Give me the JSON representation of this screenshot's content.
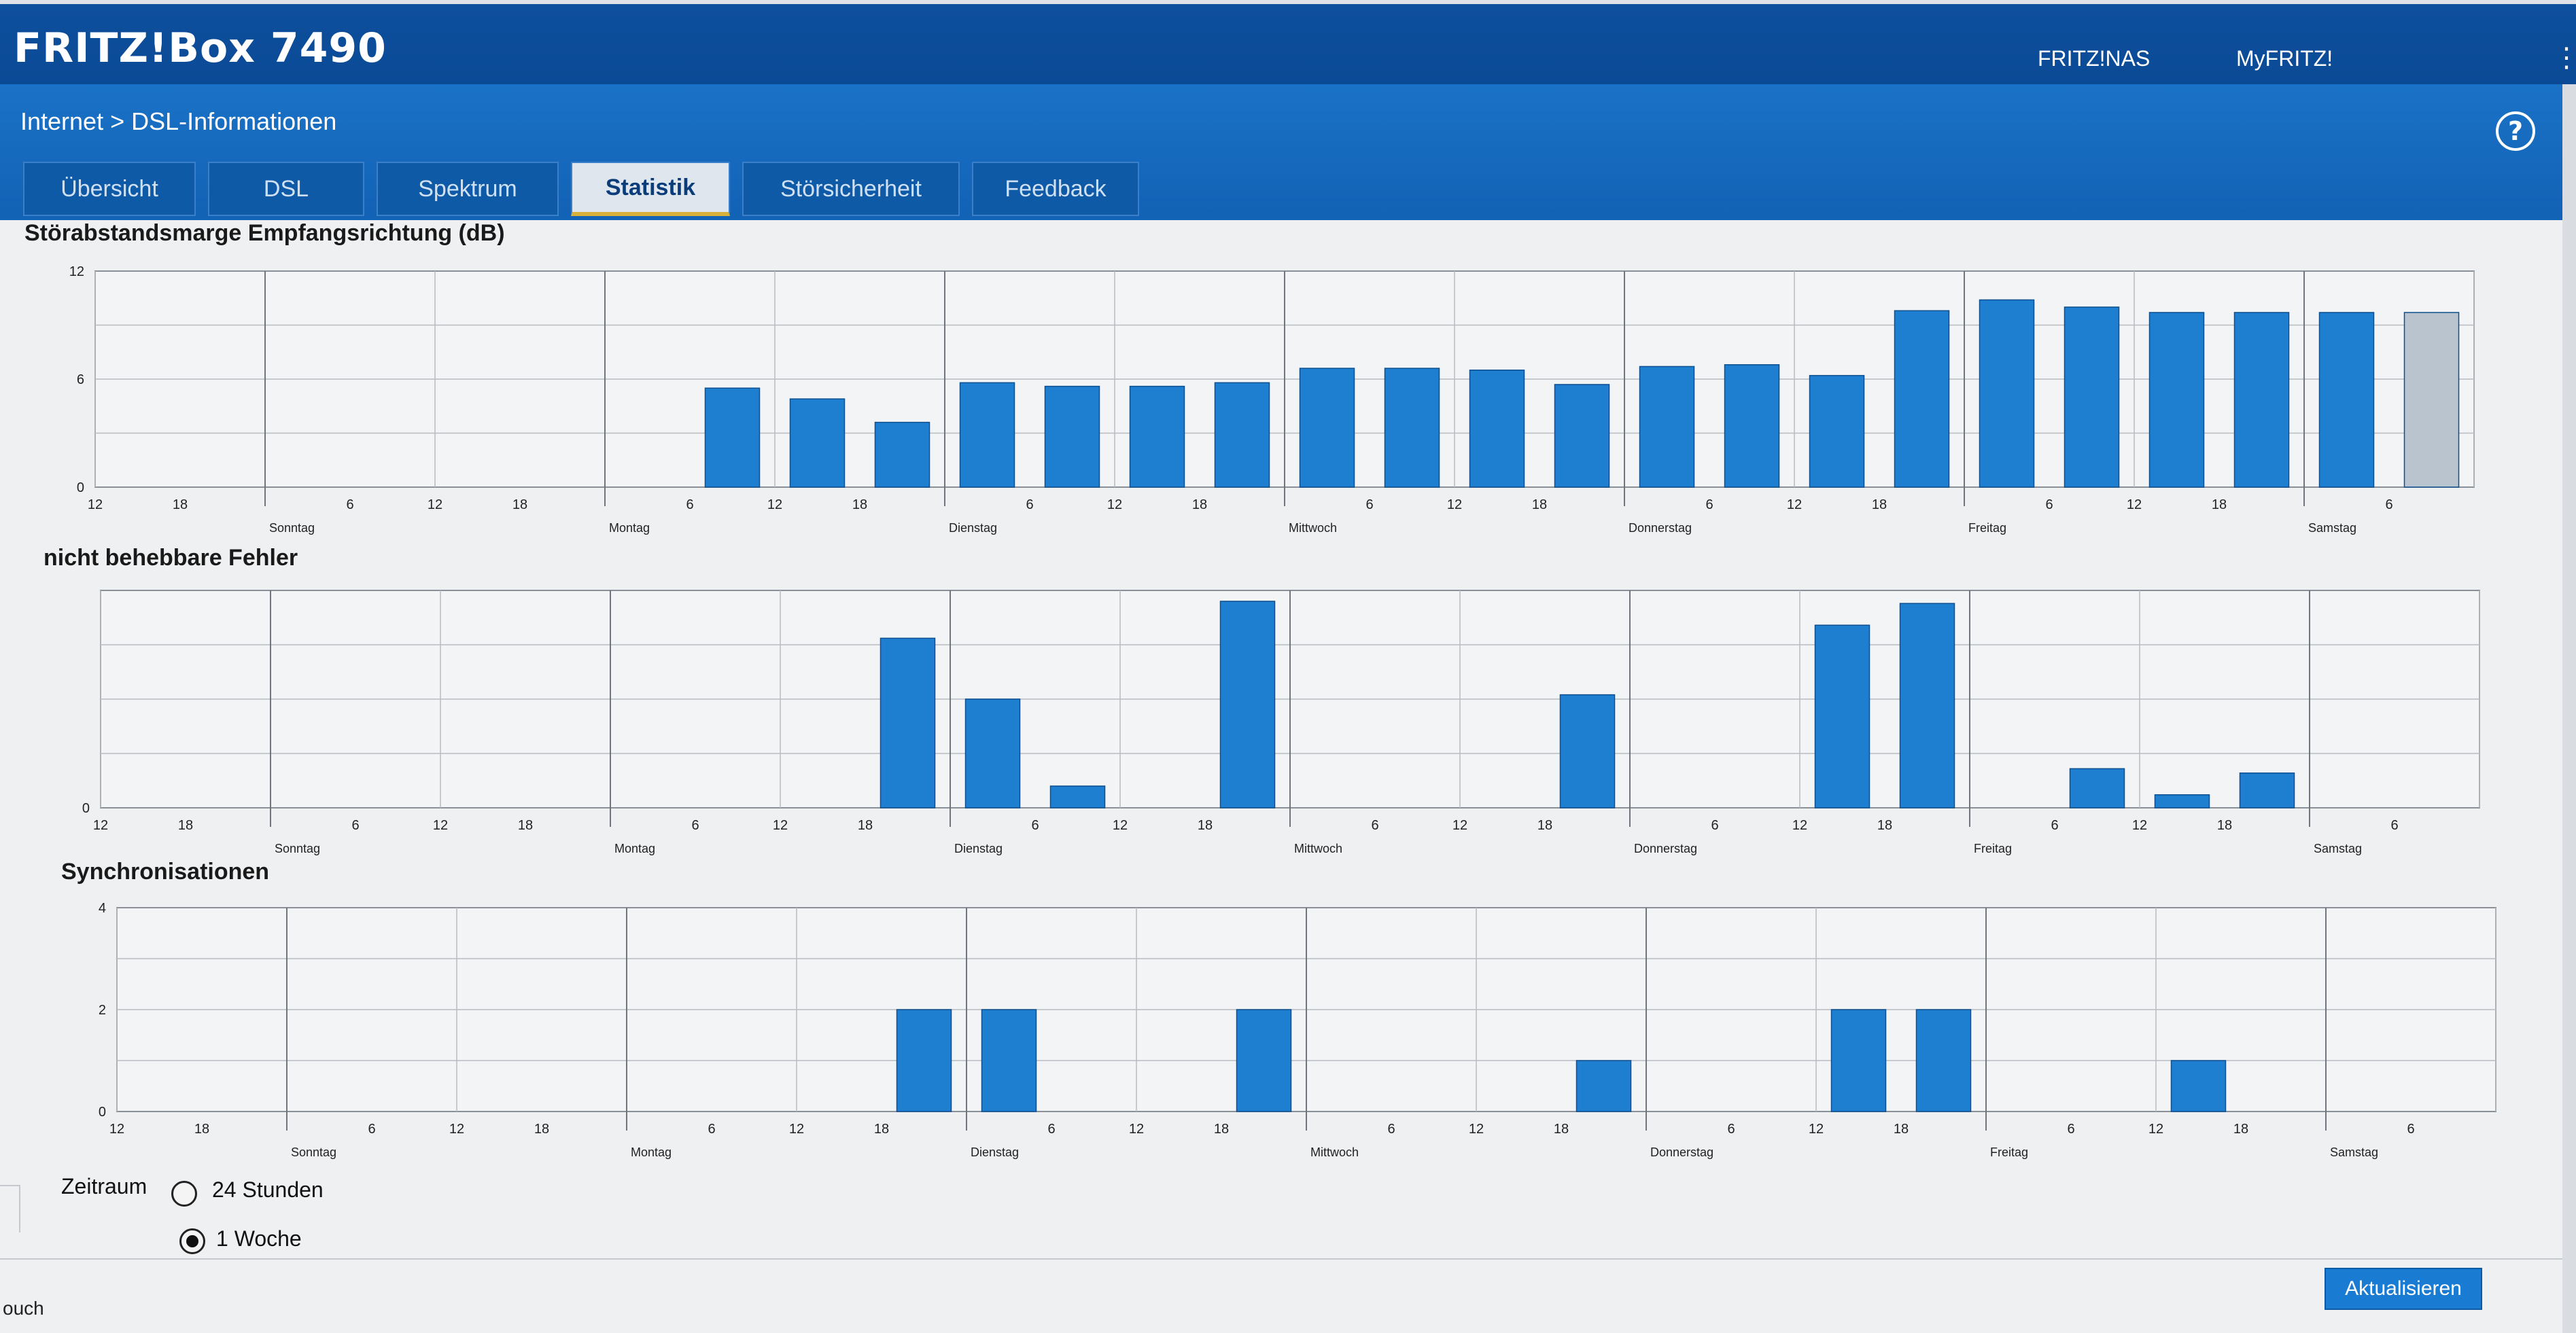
{
  "header": {
    "brand": "FRITZ!Box 7490",
    "links": [
      "FRITZ!NAS",
      "MyFRITZ!"
    ],
    "menu_icon": "kebab-menu-icon"
  },
  "breadcrumb": {
    "section": "Internet",
    "separator": ">",
    "page": "DSL-Informationen",
    "full": "Internet > DSL-Informationen"
  },
  "help_label": "?",
  "tabs": [
    {
      "label": "Übersicht",
      "active": false
    },
    {
      "label": "DSL",
      "active": false
    },
    {
      "label": "Spektrum",
      "active": false
    },
    {
      "label": "Statistik",
      "active": true
    },
    {
      "label": "Störsicherheit",
      "active": false
    },
    {
      "label": "Feedback",
      "active": false
    }
  ],
  "colors": {
    "header": "#0e4f9e",
    "subbar": "#1a72c6",
    "bar": "#1e7fd0",
    "bar_current": "#b9c4cf",
    "button": "#1a7bd3"
  },
  "x_axis": {
    "hour_ticks": [
      "12",
      "18",
      "6",
      "12",
      "18",
      "6",
      "12",
      "18",
      "6",
      "12",
      "18",
      "6",
      "12",
      "18",
      "6",
      "12",
      "18",
      "6",
      "12",
      "18",
      "6"
    ],
    "days": [
      "Sonntag",
      "Montag",
      "Dienstag",
      "Mittwoch",
      "Donnerstag",
      "Freitag",
      "Samstag"
    ]
  },
  "chart_data": [
    {
      "type": "bar",
      "title": "Störabstandsmarge Empfangsrichtung (dB)",
      "ylim": [
        0,
        12
      ],
      "yticks": [
        "0",
        "6",
        "12"
      ],
      "x": [
        "Mo 6-12",
        "Mo 12-18",
        "Mo 18-24",
        "Di 0-6",
        "Di 6-12",
        "Di 12-18",
        "Di 18-24",
        "Mi 0-6",
        "Mi 6-12",
        "Mi 12-18",
        "Mi 18-24",
        "Do 0-6",
        "Do 6-12",
        "Do 12-18",
        "Do 18-24",
        "Fr 0-6",
        "Fr 6-12",
        "Fr 12-18",
        "Fr 18-24",
        "Sa 0-6",
        "Sa 6-12"
      ],
      "values": [
        5.5,
        4.9,
        3.6,
        5.8,
        5.6,
        5.6,
        5.8,
        6.6,
        6.6,
        6.5,
        5.7,
        6.7,
        6.8,
        6.2,
        9.8,
        10.4,
        10.0,
        9.7,
        9.7,
        9.7,
        9.7
      ],
      "current_index": 20
    },
    {
      "type": "bar",
      "title": "nicht behebbare Fehler",
      "yticks": [
        "0"
      ],
      "ylim": [
        0,
        10
      ],
      "x": [
        "Mo 18-24",
        "Di 0-6",
        "Di 6-12",
        "Di 18-24",
        "Mi 18-24",
        "Do 12-18",
        "Do 18-24",
        "Fr 6-12",
        "Fr 12-18",
        "Fr 18-24"
      ],
      "values": [
        7.8,
        5.0,
        1.0,
        9.5,
        5.2,
        8.4,
        9.4,
        1.8,
        0.6,
        1.6
      ]
    },
    {
      "type": "bar",
      "title": "Synchronisationen",
      "ylim": [
        0,
        4
      ],
      "yticks": [
        "0",
        "2",
        "4"
      ],
      "x": [
        "Mo 18-24",
        "Di 0-6",
        "Di 18-24",
        "Mi 18-24",
        "Do 12-18",
        "Do 18-24",
        "Fr 12-18"
      ],
      "values": [
        2,
        2,
        2,
        1,
        2,
        2,
        1
      ]
    }
  ],
  "zeitraum": {
    "label": "Zeitraum",
    "options": [
      {
        "label": "24 Stunden",
        "selected": false
      },
      {
        "label": "1 Woche",
        "selected": true
      }
    ]
  },
  "refresh_button": "Aktualisieren",
  "left_cut_text": "ouch"
}
